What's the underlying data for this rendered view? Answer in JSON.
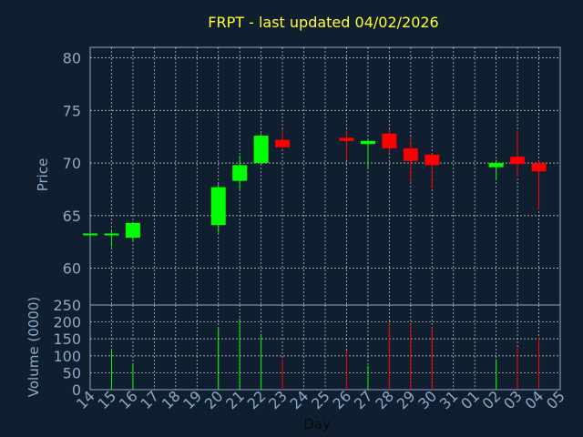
{
  "chart_data": {
    "type": "candlestick",
    "title": "FRPT - last updated 04/02/2026",
    "xlabel": "Day",
    "price_panel": {
      "ylabel": "Price",
      "ylim": [
        56.5,
        81
      ],
      "yticks": [
        60,
        65,
        70,
        75,
        80
      ]
    },
    "volume_panel": {
      "ylabel": "Volume (0000)",
      "ylim": [
        0,
        250
      ],
      "yticks": [
        0,
        50,
        100,
        150,
        200,
        250
      ]
    },
    "x_tick_labels": [
      "14",
      "15",
      "16",
      "17",
      "18",
      "19",
      "20",
      "21",
      "22",
      "23",
      "24",
      "25",
      "26",
      "27",
      "28",
      "29",
      "30",
      "31",
      "01",
      "02",
      "03",
      "04",
      "05"
    ],
    "colors": {
      "up": "#00ff00",
      "down": "#ff0000",
      "background": "#0f1f30",
      "title": "#ffff33",
      "axis": "#8caac8",
      "grid": "#ffffff"
    },
    "candles": [
      {
        "x": 0,
        "open": 63.3,
        "high": 63.4,
        "low": 63.2,
        "close": 63.3,
        "volume": 0
      },
      {
        "x": 1,
        "open": 63.2,
        "high": 63.7,
        "low": 62.0,
        "close": 63.3,
        "volume": 115
      },
      {
        "x": 2,
        "open": 62.9,
        "high": 64.4,
        "low": 62.5,
        "close": 64.3,
        "volume": 75
      },
      {
        "x": 6,
        "open": 64.1,
        "high": 68.0,
        "low": 63.4,
        "close": 67.7,
        "volume": 185
      },
      {
        "x": 7,
        "open": 68.3,
        "high": 70.7,
        "low": 67.5,
        "close": 69.8,
        "volume": 210
      },
      {
        "x": 8,
        "open": 70.0,
        "high": 72.8,
        "low": 69.9,
        "close": 72.6,
        "volume": 165
      },
      {
        "x": 9,
        "open": 72.2,
        "high": 73.2,
        "low": 71.4,
        "close": 71.5,
        "volume": 90
      },
      {
        "x": 12,
        "open": 72.4,
        "high": 73.1,
        "low": 70.3,
        "close": 72.1,
        "volume": 115
      },
      {
        "x": 13,
        "open": 71.8,
        "high": 72.2,
        "low": 69.5,
        "close": 72.1,
        "volume": 70
      },
      {
        "x": 14,
        "open": 72.8,
        "high": 73.2,
        "low": 70.9,
        "close": 71.4,
        "volume": 195
      },
      {
        "x": 15,
        "open": 71.4,
        "high": 72.5,
        "low": 68.1,
        "close": 70.2,
        "volume": 195
      },
      {
        "x": 16,
        "open": 70.8,
        "high": 70.9,
        "low": 67.6,
        "close": 69.8,
        "volume": 185
      },
      {
        "x": 19,
        "open": 69.6,
        "high": 70.3,
        "low": 68.4,
        "close": 70.0,
        "volume": 90
      },
      {
        "x": 20,
        "open": 70.6,
        "high": 73.1,
        "low": 68.7,
        "close": 69.9,
        "volume": 125
      },
      {
        "x": 21,
        "open": 70.0,
        "high": 70.2,
        "low": 65.6,
        "close": 69.2,
        "volume": 155
      }
    ]
  }
}
